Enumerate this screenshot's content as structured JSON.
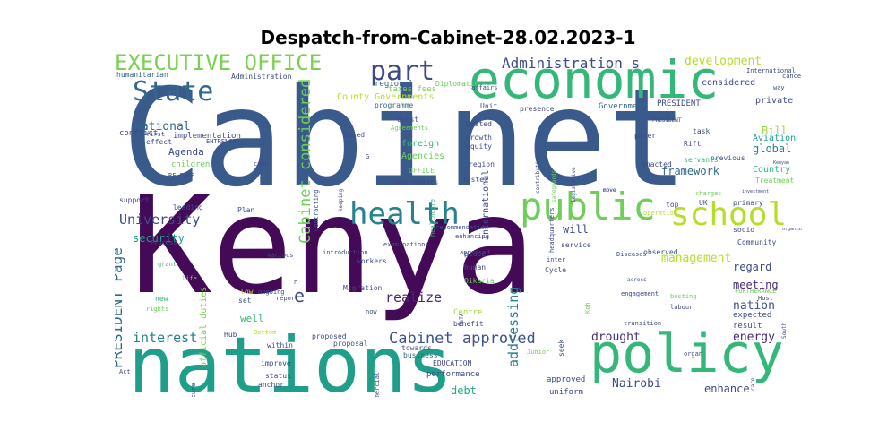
{
  "chart_data": {
    "type": "wordcloud",
    "title": "Despatch-from-Cabinet-28.02.2023-1",
    "words": [
      {
        "text": "Cabinet",
        "weight": 100,
        "color": "#3b5a8c"
      },
      {
        "text": "Kenya",
        "weight": 95,
        "color": "#440a57"
      },
      {
        "text": "nations",
        "weight": 78,
        "color": "#1f9e89"
      },
      {
        "text": "economic",
        "weight": 60,
        "color": "#35b779"
      },
      {
        "text": "policy",
        "weight": 58,
        "color": "#35b779"
      },
      {
        "text": "public",
        "weight": 40,
        "color": "#6ece58"
      },
      {
        "text": "school",
        "weight": 36,
        "color": "#b5de2b"
      },
      {
        "text": "health",
        "weight": 34,
        "color": "#26828e"
      },
      {
        "text": "State",
        "weight": 30,
        "color": "#31688e"
      },
      {
        "text": "part",
        "weight": 28,
        "color": "#3e4a89"
      },
      {
        "text": "EXECUTIVE OFFICE",
        "weight": 24,
        "color": "#7ad151"
      },
      {
        "text": "Cabinet approved",
        "weight": 18,
        "color": "#3b528b"
      },
      {
        "text": "Cabinet considered",
        "weight": 17,
        "color": "#6ece58"
      },
      {
        "text": "Administration s",
        "weight": 16,
        "color": "#3e4a89"
      },
      {
        "text": "PRESIDENT Page",
        "weight": 16,
        "color": "#31688e"
      },
      {
        "text": "University",
        "weight": 15,
        "color": "#3e4a89"
      },
      {
        "text": "interest",
        "weight": 15,
        "color": "#26828e"
      },
      {
        "text": "realize",
        "weight": 14,
        "color": "#482878"
      },
      {
        "text": "addressing",
        "weight": 14,
        "color": "#26828e"
      },
      {
        "text": "management",
        "weight": 13,
        "color": "#b5de2b"
      },
      {
        "text": "development",
        "weight": 13,
        "color": "#b5de2b"
      },
      {
        "text": "national",
        "weight": 13,
        "color": "#31688e"
      },
      {
        "text": "drought",
        "weight": 13,
        "color": "#472d7b"
      },
      {
        "text": "energy",
        "weight": 13,
        "color": "#482878"
      },
      {
        "text": "nation",
        "weight": 13,
        "color": "#3b528b"
      },
      {
        "text": "Nairobi",
        "weight": 13,
        "color": "#3e4a89"
      },
      {
        "text": "framework",
        "weight": 12,
        "color": "#31688e"
      },
      {
        "text": "global",
        "weight": 12,
        "color": "#26828e"
      },
      {
        "text": "Bill",
        "weight": 12,
        "color": "#a0da39"
      },
      {
        "text": "security",
        "weight": 12,
        "color": "#1f9e89"
      },
      {
        "text": "meeting",
        "weight": 12,
        "color": "#482878"
      },
      {
        "text": "regard",
        "weight": 12,
        "color": "#3e4a89"
      },
      {
        "text": "enhance",
        "weight": 12,
        "color": "#3e4a89"
      },
      {
        "text": "debt",
        "weight": 12,
        "color": "#22a884"
      },
      {
        "text": "will",
        "weight": 12,
        "color": "#3e4a89"
      },
      {
        "text": "Agenda",
        "weight": 11,
        "color": "#3e4a89"
      },
      {
        "text": "well",
        "weight": 11,
        "color": "#35b779"
      },
      {
        "text": "official duties",
        "weight": 10,
        "color": "#7ad151"
      },
      {
        "text": "County Governments",
        "weight": 10,
        "color": "#b5de2b"
      },
      {
        "text": "Country",
        "weight": 10,
        "color": "#35b779"
      },
      {
        "text": "Aviation",
        "weight": 10,
        "color": "#1f9e89"
      },
      {
        "text": "private",
        "weight": 10,
        "color": "#3e4a89"
      },
      {
        "text": "considered",
        "weight": 10,
        "color": "#3e4a89"
      },
      {
        "text": "International",
        "weight": 10,
        "color": "#3e4a89"
      },
      {
        "text": "foreign",
        "weight": 10,
        "color": "#35b779"
      },
      {
        "text": "Agencies",
        "weight": 10,
        "color": "#6ece58"
      },
      {
        "text": "e",
        "weight": 20,
        "color": "#3e4a89"
      },
      {
        "text": "implementation",
        "weight": 9,
        "color": "#3e4a89"
      },
      {
        "text": "children",
        "weight": 9,
        "color": "#6ece58"
      },
      {
        "text": "conflict",
        "weight": 9,
        "color": "#3e4a89"
      },
      {
        "text": "Administration",
        "weight": 8,
        "color": "#3e4a89"
      },
      {
        "text": "humanitarian",
        "weight": 8,
        "color": "#31688e"
      },
      {
        "text": "regional",
        "weight": 9,
        "color": "#31688e"
      },
      {
        "text": "Diplomatic",
        "weight": 8,
        "color": "#6ece58"
      },
      {
        "text": "taxes fees",
        "weight": 9,
        "color": "#7ad151"
      },
      {
        "text": "programme",
        "weight": 8,
        "color": "#31688e"
      },
      {
        "text": "Government",
        "weight": 9,
        "color": "#31688e"
      },
      {
        "text": "PRESIDENT",
        "weight": 9,
        "color": "#3e4a89"
      },
      {
        "text": "Treatment",
        "weight": 8,
        "color": "#6ece58"
      },
      {
        "text": "Community",
        "weight": 8,
        "color": "#3e4a89"
      },
      {
        "text": "primary",
        "weight": 8,
        "color": "#3e4a89"
      },
      {
        "text": "expected",
        "weight": 9,
        "color": "#3e4a89"
      },
      {
        "text": "result",
        "weight": 9,
        "color": "#3e4a89"
      },
      {
        "text": "uniform",
        "weight": 9,
        "color": "#3e4a89"
      },
      {
        "text": "approved",
        "weight": 9,
        "color": "#3e4a89"
      },
      {
        "text": "performance",
        "weight": 9,
        "color": "#3e4a89"
      },
      {
        "text": "EDUCATION",
        "weight": 8,
        "color": "#3e4a89"
      },
      {
        "text": "business",
        "weight": 8,
        "color": "#31688e"
      },
      {
        "text": "towards",
        "weight": 8,
        "color": "#3e4a89"
      },
      {
        "text": "benefit",
        "weight": 8,
        "color": "#3e4a89"
      },
      {
        "text": "Centre",
        "weight": 9,
        "color": "#a0da39"
      },
      {
        "text": "Oikaria",
        "weight": 8,
        "color": "#6ece58"
      },
      {
        "text": "human",
        "weight": 8,
        "color": "#3e4a89"
      },
      {
        "text": "place",
        "weight": 8,
        "color": "#3e4a89"
      },
      {
        "text": "Migration",
        "weight": 8,
        "color": "#3e4a89"
      },
      {
        "text": "workers",
        "weight": 8,
        "color": "#3e4a89"
      },
      {
        "text": "proposed",
        "weight": 8,
        "color": "#3e4a89"
      },
      {
        "text": "proposal",
        "weight": 8,
        "color": "#3e4a89"
      },
      {
        "text": "within",
        "weight": 8,
        "color": "#3e4a89"
      },
      {
        "text": "improve",
        "weight": 8,
        "color": "#3e4a89"
      },
      {
        "text": "status",
        "weight": 8,
        "color": "#3e4a89"
      },
      {
        "text": "anchor",
        "weight": 8,
        "color": "#3e4a89"
      },
      {
        "text": "Hub",
        "weight": 8,
        "color": "#3e4a89"
      },
      {
        "text": "set",
        "weight": 8,
        "color": "#3e4a89"
      },
      {
        "text": "low",
        "weight": 8,
        "color": "#b5de2b"
      },
      {
        "text": "new",
        "weight": 8,
        "color": "#35b779"
      },
      {
        "text": "rights",
        "weight": 7,
        "color": "#6ece58"
      },
      {
        "text": "life",
        "weight": 7,
        "color": "#6ece58"
      },
      {
        "text": "grant",
        "weight": 7,
        "color": "#35b779"
      },
      {
        "text": "Process",
        "weight": 7,
        "color": "#3e4a89"
      },
      {
        "text": "support",
        "weight": 8,
        "color": "#3e4a89"
      },
      {
        "text": "leading",
        "weight": 8,
        "color": "#3e4a89"
      },
      {
        "text": "RELEASE",
        "weight": 7,
        "color": "#3e4a89"
      },
      {
        "text": "effect",
        "weight": 8,
        "color": "#3e4a89"
      },
      {
        "text": "first",
        "weight": 7,
        "color": "#3e4a89"
      },
      {
        "text": "ENTRENCH",
        "weight": 7,
        "color": "#3e4a89"
      },
      {
        "text": "PRODUCTIVITY",
        "weight": 7,
        "color": "#31688e"
      },
      {
        "text": "Based",
        "weight": 8,
        "color": "#3e4a89"
      },
      {
        "text": "quest",
        "weight": 8,
        "color": "#3e4a89"
      },
      {
        "text": "Agreements",
        "weight": 7,
        "color": "#6ece58"
      },
      {
        "text": "Unit",
        "weight": 8,
        "color": "#3e4a89"
      },
      {
        "text": "United",
        "weight": 8,
        "color": "#3e4a89"
      },
      {
        "text": "growth",
        "weight": 8,
        "color": "#3e4a89"
      },
      {
        "text": "equity",
        "weight": 8,
        "color": "#3e4a89"
      },
      {
        "text": "region",
        "weight": 8,
        "color": "#3e4a89"
      },
      {
        "text": "foster",
        "weight": 8,
        "color": "#3e4a89"
      },
      {
        "text": "OFFICE",
        "weight": 8,
        "color": "#6ece58"
      },
      {
        "text": "amendments",
        "weight": 8,
        "color": "#3e4a89"
      },
      {
        "text": "healthcare",
        "weight": 7,
        "color": "#35b779"
      },
      {
        "text": "recommendation",
        "weight": 7,
        "color": "#3e4a89"
      },
      {
        "text": "enhancing",
        "weight": 7,
        "color": "#3e4a89"
      },
      {
        "text": "apprised",
        "weight": 7,
        "color": "#3e4a89"
      },
      {
        "text": "examinations",
        "weight": 7,
        "color": "#3e4a89"
      },
      {
        "text": "introduction",
        "weight": 7,
        "color": "#3e4a89"
      },
      {
        "text": "Plan",
        "weight": 8,
        "color": "#3e4a89"
      },
      {
        "text": "service",
        "weight": 8,
        "color": "#3e4a89"
      },
      {
        "text": "Diseases",
        "weight": 7,
        "color": "#3e4a89"
      },
      {
        "text": "observed",
        "weight": 8,
        "color": "#3e4a89"
      },
      {
        "text": "operation",
        "weight": 7,
        "color": "#b5de2b"
      },
      {
        "text": "top",
        "weight": 8,
        "color": "#3e4a89"
      },
      {
        "text": "UK",
        "weight": 8,
        "color": "#3e4a89"
      },
      {
        "text": "charges",
        "weight": 7,
        "color": "#6ece58"
      },
      {
        "text": "socio",
        "weight": 8,
        "color": "#3e4a89"
      },
      {
        "text": "inter",
        "weight": 7,
        "color": "#3e4a89"
      },
      {
        "text": "Cycle",
        "weight": 8,
        "color": "#3e4a89"
      },
      {
        "text": "engagement",
        "weight": 7,
        "color": "#3e4a89"
      },
      {
        "text": "FURTHERANCE",
        "weight": 7,
        "color": "#6ece58"
      },
      {
        "text": "seek",
        "weight": 8,
        "color": "#3e4a89"
      },
      {
        "text": "Koh",
        "weight": 7,
        "color": "#6ece58"
      },
      {
        "text": "across",
        "weight": 6,
        "color": "#3e4a89"
      },
      {
        "text": "bosting",
        "weight": 7,
        "color": "#6ece58"
      },
      {
        "text": "labour",
        "weight": 7,
        "color": "#3e4a89"
      },
      {
        "text": "Host",
        "weight": 7,
        "color": "#3e4a89"
      },
      {
        "text": "South",
        "weight": 6,
        "color": "#3e4a89"
      },
      {
        "text": "transition",
        "weight": 7,
        "color": "#3e4a89"
      },
      {
        "text": "commercial",
        "weight": 7,
        "color": "#3e4a89"
      },
      {
        "text": "Junior",
        "weight": 7,
        "color": "#6ece58"
      },
      {
        "text": "organ",
        "weight": 7,
        "color": "#3e4a89"
      },
      {
        "text": "care",
        "weight": 6,
        "color": "#3e4a89"
      },
      {
        "text": "PRESIDENT",
        "weight": 6,
        "color": "#3e4a89"
      },
      {
        "text": "previous",
        "weight": 8,
        "color": "#3e4a89"
      },
      {
        "text": "enacted",
        "weight": 8,
        "color": "#3e4a89"
      },
      {
        "text": "servants",
        "weight": 8,
        "color": "#35b779"
      },
      {
        "text": "Rift",
        "weight": 8,
        "color": "#3e4a89"
      },
      {
        "text": "task",
        "weight": 8,
        "color": "#3e4a89"
      },
      {
        "text": "power",
        "weight": 8,
        "color": "#3e4a89"
      },
      {
        "text": "presence",
        "weight": 8,
        "color": "#3e4a89"
      },
      {
        "text": "affairs",
        "weight": 7,
        "color": "#3e4a89"
      },
      {
        "text": "International",
        "weight": 7,
        "color": "#3e4a89"
      },
      {
        "text": "cancer",
        "weight": 7,
        "color": "#3e4a89"
      },
      {
        "text": "way",
        "weight": 7,
        "color": "#3e4a89"
      },
      {
        "text": "come",
        "weight": 7,
        "color": "#3e4a89"
      },
      {
        "text": "Contracting",
        "weight": 7,
        "color": "#3e4a89"
      },
      {
        "text": "keeping",
        "weight": 6,
        "color": "#3e4a89"
      },
      {
        "text": "headquarters",
        "weight": 7,
        "color": "#3e4a89"
      },
      {
        "text": "safeguards",
        "weight": 6,
        "color": "#6ece58"
      },
      {
        "text": "legislative",
        "weight": 6,
        "color": "#3e4a89"
      },
      {
        "text": "contribution",
        "weight": 6,
        "color": "#3e4a89"
      },
      {
        "text": "ongoing",
        "weight": 7,
        "color": "#3e4a89"
      },
      {
        "text": "various",
        "weight": 7,
        "color": "#3e4a89"
      },
      {
        "text": "Secondary",
        "weight": 6,
        "color": "#6ece58"
      },
      {
        "text": "Bottom",
        "weight": 7,
        "color": "#b5de2b"
      },
      {
        "text": "report",
        "weight": 7,
        "color": "#3e4a89"
      },
      {
        "text": "procure",
        "weight": 7,
        "color": "#3e4a89"
      },
      {
        "text": "Act",
        "weight": 7,
        "color": "#3e4a89"
      },
      {
        "text": "G",
        "weight": 7,
        "color": "#3e4a89"
      },
      {
        "text": "n",
        "weight": 7,
        "color": "#3e4a89"
      },
      {
        "text": "now",
        "weight": 7,
        "color": "#3e4a89"
      },
      {
        "text": "BeTA",
        "weight": 6,
        "color": "#3e4a89"
      },
      {
        "text": "move",
        "weight": 6,
        "color": "#3e4a89"
      },
      {
        "text": "East",
        "weight": 6,
        "color": "#3e4a89"
      },
      {
        "text": "move",
        "weight": 6,
        "color": "#3e4a89"
      },
      {
        "text": "Kenyan",
        "weight": 5,
        "color": "#3e4a89"
      },
      {
        "text": "investment",
        "weight": 5,
        "color": "#3e4a89"
      },
      {
        "text": "organization",
        "weight": 5,
        "color": "#3e4a89"
      }
    ]
  }
}
